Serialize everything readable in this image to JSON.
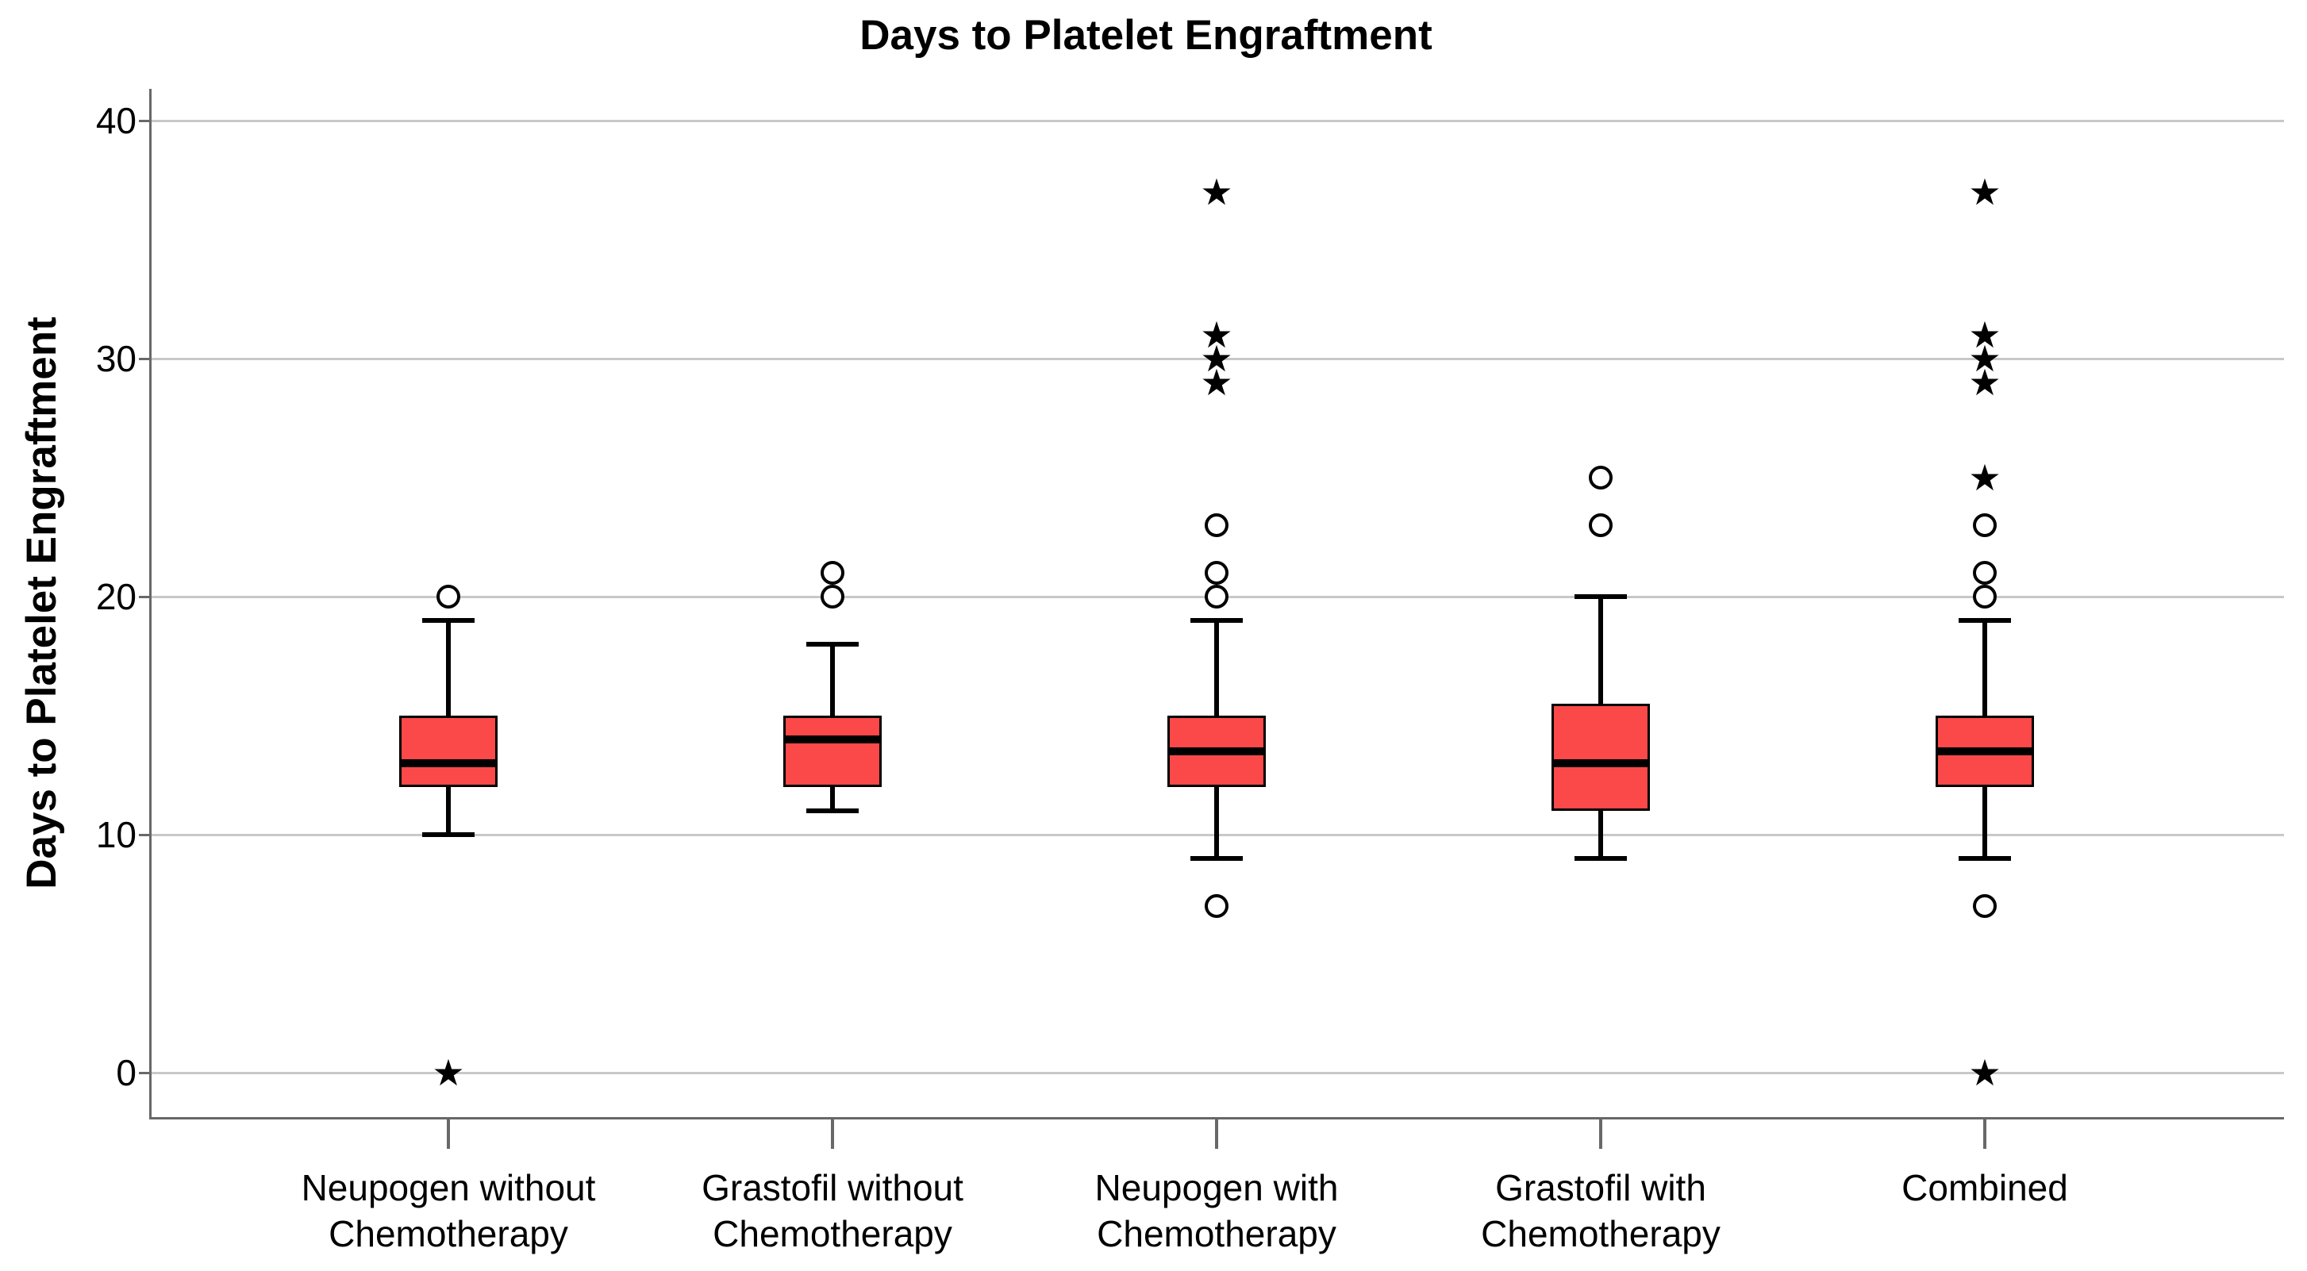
{
  "title": "Days to Platelet Engraftment",
  "y_axis": {
    "label": "Days to Platelet Engraftment",
    "tick_labels": [
      "0",
      "10",
      "20",
      "30",
      "40"
    ]
  },
  "x_axis": {
    "tick_labels": [
      "Neupogen without Chemotherapy",
      "Grastofil without Chemotherapy",
      "Neupogen with Chemotherapy",
      "Grastofil with Chemotherapy",
      "Combined"
    ]
  },
  "chart_data": {
    "type": "boxplot",
    "title": "Days to Platelet Engraftment",
    "xlabel": "",
    "ylabel": "Days to Platelet Engraftment",
    "ylim": [
      -2,
      42
    ],
    "yticks": [
      0,
      10,
      20,
      30,
      40
    ],
    "grid": true,
    "legend": null,
    "categories": [
      "Neupogen without Chemotherapy",
      "Grastofil without Chemotherapy",
      "Neupogen with Chemotherapy",
      "Grastofil with Chemotherapy",
      "Combined"
    ],
    "category_label_lines": [
      [
        "Neupogen without",
        "Chemotherapy"
      ],
      [
        "Grastofil without",
        "Chemotherapy"
      ],
      [
        "Neupogen with",
        "Chemotherapy"
      ],
      [
        "Grastofil with",
        "Chemotherapy"
      ],
      [
        "Combined"
      ]
    ],
    "series": [
      {
        "name": "Neupogen without Chemotherapy",
        "whisker_low": 10,
        "q1": 12,
        "median": 13,
        "q3": 15,
        "whisker_high": 19,
        "outliers": [
          {
            "value": 20,
            "glyph": "circle"
          },
          {
            "value": 0,
            "glyph": "star"
          }
        ]
      },
      {
        "name": "Grastofil without Chemotherapy",
        "whisker_low": 11,
        "q1": 12,
        "median": 14,
        "q3": 15,
        "whisker_high": 18,
        "outliers": [
          {
            "value": 20,
            "glyph": "circle"
          },
          {
            "value": 21,
            "glyph": "circle"
          }
        ]
      },
      {
        "name": "Neupogen with Chemotherapy",
        "whisker_low": 9,
        "q1": 12,
        "median": 13.5,
        "q3": 15,
        "whisker_high": 19,
        "outliers": [
          {
            "value": 7,
            "glyph": "circle"
          },
          {
            "value": 20,
            "glyph": "circle"
          },
          {
            "value": 21,
            "glyph": "circle"
          },
          {
            "value": 23,
            "glyph": "circle"
          },
          {
            "value": 29,
            "glyph": "star"
          },
          {
            "value": 30,
            "glyph": "star"
          },
          {
            "value": 31,
            "glyph": "star"
          },
          {
            "value": 37,
            "glyph": "star"
          }
        ]
      },
      {
        "name": "Grastofil with Chemotherapy",
        "whisker_low": 9,
        "q1": 11,
        "median": 13,
        "q3": 15.5,
        "whisker_high": 20,
        "outliers": [
          {
            "value": 23,
            "glyph": "circle"
          },
          {
            "value": 25,
            "glyph": "circle"
          }
        ]
      },
      {
        "name": "Combined",
        "whisker_low": 9,
        "q1": 12,
        "median": 13.5,
        "q3": 15,
        "whisker_high": 19,
        "outliers": [
          {
            "value": 0,
            "glyph": "star"
          },
          {
            "value": 7,
            "glyph": "circle"
          },
          {
            "value": 20,
            "glyph": "circle"
          },
          {
            "value": 21,
            "glyph": "circle"
          },
          {
            "value": 23,
            "glyph": "circle"
          },
          {
            "value": 25,
            "glyph": "star"
          },
          {
            "value": 29,
            "glyph": "star"
          },
          {
            "value": 30,
            "glyph": "star"
          },
          {
            "value": 31,
            "glyph": "star"
          },
          {
            "value": 37,
            "glyph": "star"
          }
        ]
      }
    ]
  },
  "glyphs": {
    "circle_outlier": "○",
    "star_extreme": "★"
  },
  "colors": {
    "background": "#ffffff",
    "box_fill": "#fb4949",
    "box_border": "#000000",
    "median": "#000000",
    "whisker": "#000000",
    "gridline": "#c8c8c8",
    "axis_line": "#686868",
    "text": "#000000"
  }
}
